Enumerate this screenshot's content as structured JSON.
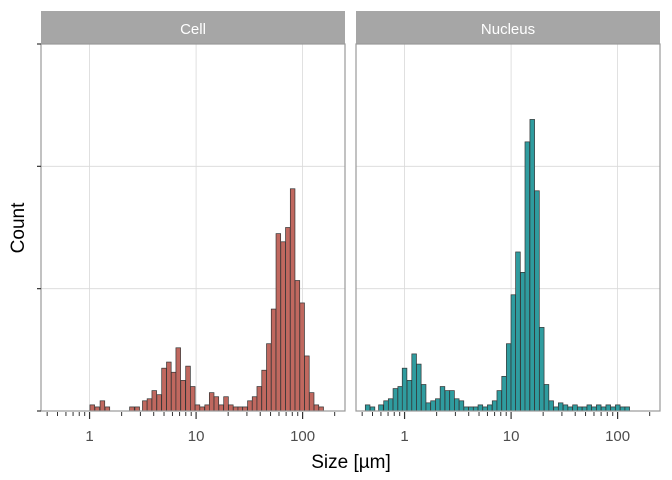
{
  "chart_data": {
    "type": "bar",
    "xlabel": "Size [µm]",
    "ylabel": "Count",
    "x_scale": "log10",
    "xlim": [
      0.35,
      250
    ],
    "ylim": [
      0,
      180
    ],
    "x_tick_labels": [
      "1",
      "10",
      "100"
    ],
    "grid": true,
    "panels": [
      {
        "name": "Cell",
        "fill": "#c0685f",
        "bins": [
          {
            "x": 1.06,
            "y": 3
          },
          {
            "x": 1.18,
            "y": 2
          },
          {
            "x": 1.32,
            "y": 5
          },
          {
            "x": 1.47,
            "y": 2
          },
          {
            "x": 2.5,
            "y": 2
          },
          {
            "x": 2.8,
            "y": 2
          },
          {
            "x": 3.3,
            "y": 5
          },
          {
            "x": 3.65,
            "y": 6
          },
          {
            "x": 4.05,
            "y": 10
          },
          {
            "x": 4.5,
            "y": 8
          },
          {
            "x": 5.0,
            "y": 21
          },
          {
            "x": 5.55,
            "y": 24
          },
          {
            "x": 6.15,
            "y": 19
          },
          {
            "x": 6.8,
            "y": 31
          },
          {
            "x": 7.55,
            "y": 15
          },
          {
            "x": 8.4,
            "y": 22
          },
          {
            "x": 9.3,
            "y": 12
          },
          {
            "x": 10.3,
            "y": 3
          },
          {
            "x": 11.4,
            "y": 2
          },
          {
            "x": 12.7,
            "y": 3
          },
          {
            "x": 14.0,
            "y": 9
          },
          {
            "x": 15.5,
            "y": 7
          },
          {
            "x": 17.2,
            "y": 3
          },
          {
            "x": 19.1,
            "y": 7
          },
          {
            "x": 21.2,
            "y": 3
          },
          {
            "x": 23.5,
            "y": 2
          },
          {
            "x": 26.0,
            "y": 2
          },
          {
            "x": 28.8,
            "y": 2
          },
          {
            "x": 32.0,
            "y": 5
          },
          {
            "x": 35.4,
            "y": 7
          },
          {
            "x": 39.2,
            "y": 12
          },
          {
            "x": 43.5,
            "y": 20
          },
          {
            "x": 48.2,
            "y": 33
          },
          {
            "x": 53.4,
            "y": 50
          },
          {
            "x": 59.2,
            "y": 87
          },
          {
            "x": 65.6,
            "y": 83
          },
          {
            "x": 72.7,
            "y": 90
          },
          {
            "x": 80.6,
            "y": 109
          },
          {
            "x": 89.3,
            "y": 64
          },
          {
            "x": 99.0,
            "y": 53
          },
          {
            "x": 109.7,
            "y": 27
          },
          {
            "x": 121.6,
            "y": 9
          },
          {
            "x": 134.7,
            "y": 3
          },
          {
            "x": 149.3,
            "y": 2
          }
        ]
      },
      {
        "name": "Nucleus",
        "fill": "#2f9c9f",
        "bins": [
          {
            "x": 0.45,
            "y": 3
          },
          {
            "x": 0.5,
            "y": 2
          },
          {
            "x": 0.6,
            "y": 3
          },
          {
            "x": 0.67,
            "y": 5
          },
          {
            "x": 0.74,
            "y": 6
          },
          {
            "x": 0.82,
            "y": 11
          },
          {
            "x": 0.91,
            "y": 12
          },
          {
            "x": 1.0,
            "y": 21
          },
          {
            "x": 1.11,
            "y": 15
          },
          {
            "x": 1.23,
            "y": 28
          },
          {
            "x": 1.36,
            "y": 23
          },
          {
            "x": 1.51,
            "y": 13
          },
          {
            "x": 1.67,
            "y": 4
          },
          {
            "x": 1.85,
            "y": 5
          },
          {
            "x": 2.05,
            "y": 6
          },
          {
            "x": 2.27,
            "y": 12
          },
          {
            "x": 2.52,
            "y": 10
          },
          {
            "x": 2.79,
            "y": 10
          },
          {
            "x": 3.09,
            "y": 6
          },
          {
            "x": 3.42,
            "y": 5
          },
          {
            "x": 3.79,
            "y": 2
          },
          {
            "x": 4.2,
            "y": 2
          },
          {
            "x": 4.65,
            "y": 2
          },
          {
            "x": 5.15,
            "y": 3
          },
          {
            "x": 5.7,
            "y": 2
          },
          {
            "x": 6.3,
            "y": 3
          },
          {
            "x": 7.0,
            "y": 5
          },
          {
            "x": 7.75,
            "y": 10
          },
          {
            "x": 8.6,
            "y": 17
          },
          {
            "x": 9.5,
            "y": 33
          },
          {
            "x": 10.5,
            "y": 57
          },
          {
            "x": 11.6,
            "y": 78
          },
          {
            "x": 12.9,
            "y": 68
          },
          {
            "x": 14.2,
            "y": 132
          },
          {
            "x": 15.8,
            "y": 143
          },
          {
            "x": 17.5,
            "y": 108
          },
          {
            "x": 19.4,
            "y": 41
          },
          {
            "x": 21.5,
            "y": 13
          },
          {
            "x": 23.8,
            "y": 5
          },
          {
            "x": 26.4,
            "y": 2
          },
          {
            "x": 29.2,
            "y": 4
          },
          {
            "x": 32.4,
            "y": 3
          },
          {
            "x": 35.9,
            "y": 2
          },
          {
            "x": 39.8,
            "y": 3
          },
          {
            "x": 44.1,
            "y": 2
          },
          {
            "x": 48.9,
            "y": 2
          },
          {
            "x": 54.2,
            "y": 3
          },
          {
            "x": 60.0,
            "y": 2
          },
          {
            "x": 66.5,
            "y": 3
          },
          {
            "x": 73.7,
            "y": 2
          },
          {
            "x": 81.7,
            "y": 3
          },
          {
            "x": 90.5,
            "y": 2
          },
          {
            "x": 100.3,
            "y": 3
          },
          {
            "x": 111.2,
            "y": 2
          },
          {
            "x": 123.2,
            "y": 2
          }
        ]
      }
    ]
  }
}
